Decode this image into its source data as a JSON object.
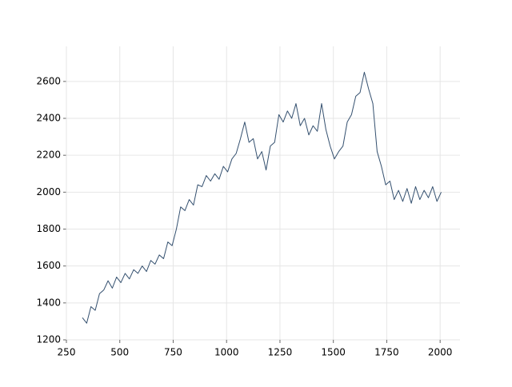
{
  "chart_data": {
    "type": "line",
    "x": [
      325,
      345,
      365,
      385,
      405,
      425,
      445,
      465,
      485,
      505,
      525,
      545,
      565,
      585,
      605,
      625,
      645,
      665,
      685,
      705,
      725,
      745,
      765,
      785,
      805,
      825,
      845,
      865,
      885,
      905,
      925,
      945,
      965,
      985,
      1005,
      1025,
      1045,
      1065,
      1085,
      1105,
      1125,
      1145,
      1165,
      1185,
      1205,
      1225,
      1245,
      1265,
      1285,
      1305,
      1325,
      1345,
      1365,
      1385,
      1405,
      1425,
      1445,
      1465,
      1485,
      1505,
      1525,
      1545,
      1565,
      1585,
      1605,
      1625,
      1645,
      1665,
      1685,
      1705,
      1725,
      1745,
      1765,
      1785,
      1805,
      1825,
      1845,
      1865,
      1885,
      1905,
      1925,
      1945,
      1965,
      1985,
      2005
    ],
    "series": [
      {
        "color": "#34506f",
        "values": [
          1320,
          1290,
          1380,
          1360,
          1450,
          1470,
          1520,
          1480,
          1540,
          1510,
          1560,
          1530,
          1580,
          1560,
          1600,
          1570,
          1630,
          1610,
          1660,
          1640,
          1730,
          1710,
          1800,
          1920,
          1900,
          1960,
          1930,
          2040,
          2030,
          2090,
          2060,
          2100,
          2070,
          2140,
          2110,
          2180,
          2210,
          2290,
          2380,
          2270,
          2290,
          2180,
          2220,
          2120,
          2250,
          2270,
          2420,
          2380,
          2440,
          2400,
          2480,
          2360,
          2400,
          2310,
          2360,
          2330,
          2480,
          2340,
          2250,
          2180,
          2220,
          2250,
          2380,
          2420,
          2520,
          2540,
          2650,
          2560,
          2480,
          2220,
          2140,
          2040,
          2060,
          1960,
          2010,
          1950,
          2020,
          1940,
          2030,
          1960,
          2010,
          1970,
          2030,
          1950,
          2000
        ]
      }
    ],
    "xlim": [
      250,
      2093
    ],
    "ylim": [
      1200,
      2790
    ],
    "xticks": [
      250,
      500,
      750,
      1000,
      1250,
      1500,
      1750,
      2000
    ],
    "yticks": [
      1200,
      1400,
      1600,
      1800,
      2000,
      2200,
      2400,
      2600
    ],
    "grid": true
  }
}
